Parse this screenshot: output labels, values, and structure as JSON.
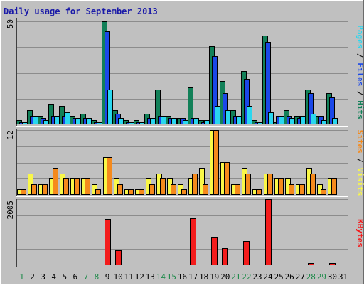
{
  "chart_data": {
    "type": "bar",
    "title": "Daily usage for September 2013",
    "categories": [
      "1",
      "2",
      "3",
      "4",
      "5",
      "6",
      "7",
      "8",
      "9",
      "10",
      "11",
      "12",
      "13",
      "14",
      "15",
      "16",
      "17",
      "18",
      "19",
      "20",
      "21",
      "22",
      "23",
      "24",
      "25",
      "26",
      "27",
      "28",
      "29",
      "30",
      "31"
    ],
    "weekend_days": [
      "1",
      "7",
      "8",
      "14",
      "15",
      "21",
      "22",
      "28",
      "29"
    ],
    "panels": [
      {
        "name": "hits_files_pages",
        "ytick_label": "50",
        "ylim": [
          0,
          50
        ],
        "side_labels": [
          "Hits",
          "Files",
          "Pages"
        ],
        "series": [
          {
            "name": "Hits",
            "color": "#128058",
            "values": [
              2,
              7,
              4,
              10,
              9,
              4,
              5,
              2,
              50,
              7,
              2,
              2,
              5,
              17,
              4,
              3,
              18,
              2,
              38,
              21,
              7,
              26,
              2,
              43,
              1,
              7,
              4,
              17,
              4,
              15,
              0
            ]
          },
          {
            "name": "Files",
            "color": "#1a48e8",
            "values": [
              1,
              4,
              3,
              4,
              4,
              3,
              3,
              1,
              45,
              5,
              1,
              1,
              3,
              4,
              3,
              3,
              3,
              1,
              33,
              15,
              4,
              22,
              1,
              40,
              4,
              4,
              3,
              15,
              4,
              13,
              0
            ]
          },
          {
            "name": "Pages",
            "color": "#2ad7ef",
            "values": [
              1,
              4,
              2,
              4,
              6,
              3,
              3,
              1,
              17,
              3,
              1,
              1,
              3,
              4,
              3,
              2,
              3,
              2,
              9,
              7,
              4,
              9,
              1,
              6,
              4,
              3,
              4,
              5,
              2,
              3,
              0
            ]
          }
        ]
      },
      {
        "name": "visits_sites",
        "ytick_label": "12",
        "ylim": [
          0,
          12
        ],
        "side_labels": [
          "Visits",
          "Sites"
        ],
        "series": [
          {
            "name": "Visits",
            "color": "#f9f748",
            "values": [
              1,
              4,
              2,
              3,
              4,
              3,
              3,
              2,
              7,
              3,
              1,
              1,
              3,
              4,
              3,
              2,
              3,
              5,
              12,
              6,
              2,
              5,
              1,
              4,
              3,
              3,
              2,
              5,
              2,
              3,
              0
            ]
          },
          {
            "name": "Sites",
            "color": "#f58a1c",
            "values": [
              1,
              2,
              2,
              5,
              3,
              3,
              3,
              1,
              7,
              2,
              1,
              1,
              2,
              3,
              2,
              1,
              4,
              2,
              12,
              6,
              2,
              4,
              1,
              4,
              3,
              2,
              2,
              4,
              1,
              3,
              0
            ]
          }
        ]
      },
      {
        "name": "kbytes",
        "ytick_label": "2005",
        "ylim": [
          0,
          2005
        ],
        "side_labels": [
          "KBytes"
        ],
        "series": [
          {
            "name": "KBytes",
            "color": "#f31c1c",
            "values": [
              20,
              20,
              20,
              20,
              20,
              20,
              20,
              20,
              1400,
              450,
              20,
              20,
              20,
              20,
              20,
              20,
              1420,
              20,
              860,
              520,
              20,
              730,
              20,
              2005,
              20,
              20,
              20,
              60,
              20,
              60,
              0
            ]
          }
        ]
      }
    ]
  }
}
